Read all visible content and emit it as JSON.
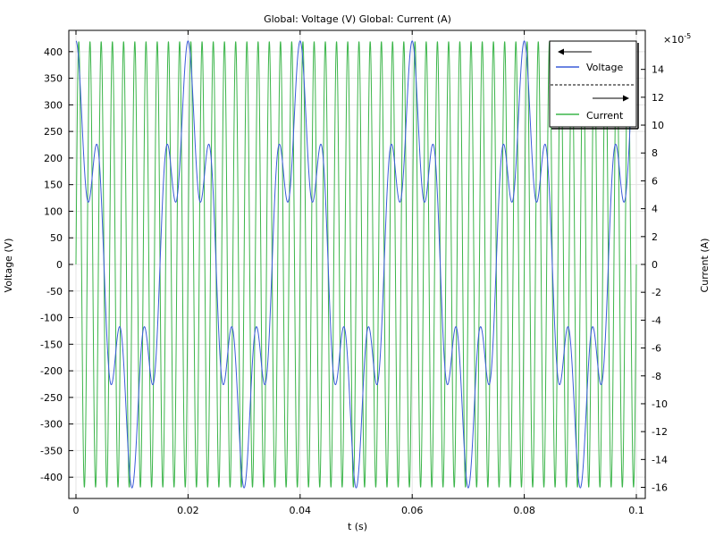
{
  "chart_data": {
    "type": "line",
    "title": "Global: Voltage (V)  Global: Current (A)",
    "xlabel": "t (s)",
    "ylabel_left": "Voltage (V)",
    "ylabel_right": "Current (A)",
    "right_exponent": "×10",
    "right_exponent_power": "-5",
    "xlim": [
      0,
      0.1
    ],
    "ylim_left": [
      -440,
      440
    ],
    "ylim_right": [
      -16.8,
      16.8
    ],
    "x_ticks": [
      "0",
      "0.02",
      "0.04",
      "0.06",
      "0.08",
      "0.1"
    ],
    "y_left_ticks": [
      "400",
      "350",
      "300",
      "250",
      "200",
      "150",
      "100",
      "50",
      "0",
      "-50",
      "-100",
      "-150",
      "-200",
      "-250",
      "-300",
      "-350",
      "-400"
    ],
    "y_right_ticks": [
      "14",
      "12",
      "10",
      "8",
      "6",
      "4",
      "2",
      "0",
      "-2",
      "-4",
      "-6",
      "-8",
      "-10",
      "-12",
      "-14",
      "-16"
    ],
    "grid": true,
    "legend_position": "top-right",
    "series": [
      {
        "name": "Voltage",
        "axis": "left",
        "color": "#3a5bd9",
        "peak": 420,
        "components": [
          {
            "frequency_hz": 50,
            "amplitude": 300
          },
          {
            "frequency_hz": 250,
            "amplitude": 120
          }
        ]
      },
      {
        "name": "Current",
        "axis": "right",
        "color": "#3cb54a",
        "amplitude": 16.0,
        "frequency_hz": 500
      }
    ]
  }
}
